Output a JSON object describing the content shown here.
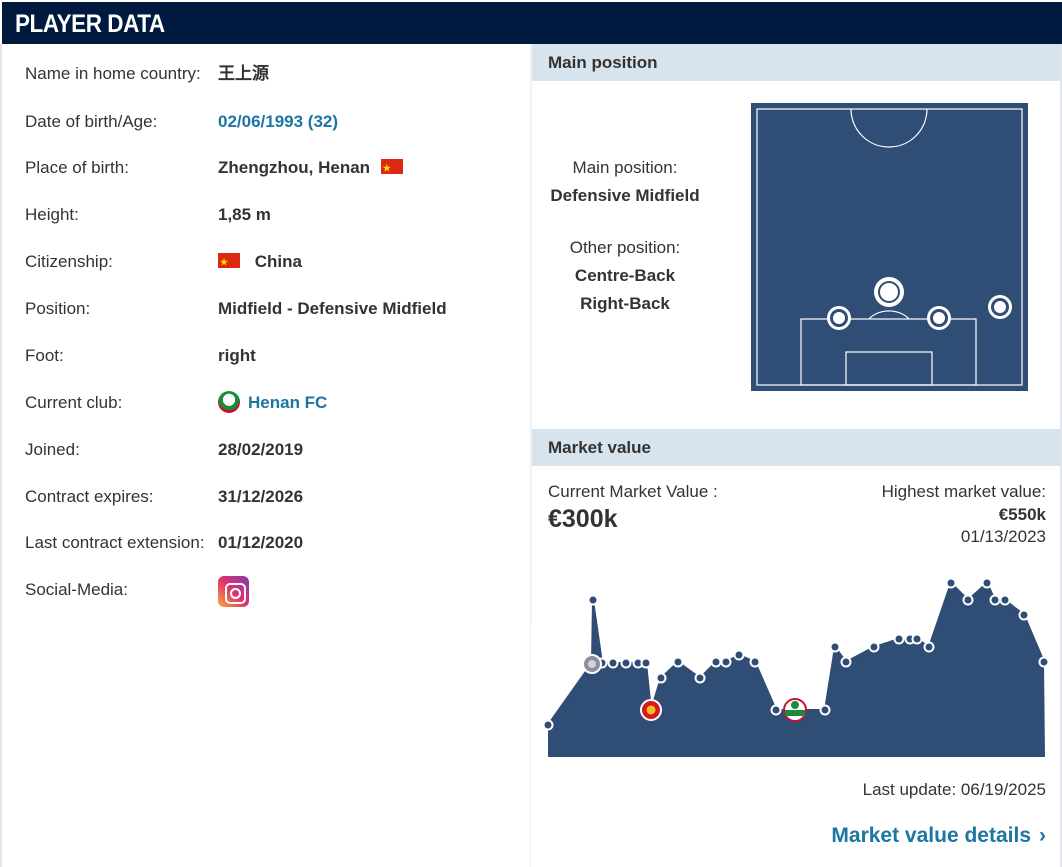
{
  "header": {
    "title": "PLAYER DATA"
  },
  "player": {
    "rows": [
      {
        "label": "Name in home country:",
        "value": "王上源"
      },
      {
        "label": "Date of birth/Age:",
        "value": "02/06/1993 (32)"
      },
      {
        "label": "Place of birth:",
        "value": "Zhengzhou, Henan"
      },
      {
        "label": "Height:",
        "value": "1,85 m"
      },
      {
        "label": "Citizenship:",
        "value": "China"
      },
      {
        "label": "Position:",
        "value": "Midfield - Defensive Midfield"
      },
      {
        "label": "Foot:",
        "value": "right"
      },
      {
        "label": "Current club:",
        "value": "Henan FC"
      },
      {
        "label": "Joined:",
        "value": "28/02/2019"
      },
      {
        "label": "Contract expires:",
        "value": "31/12/2026"
      },
      {
        "label": "Last contract extension:",
        "value": "01/12/2020"
      },
      {
        "label": "Social-Media:",
        "value": ""
      }
    ],
    "flag_icon": "china-flag-icon",
    "club_icon": "henan-fc-logo-icon",
    "social_icon": "instagram-icon"
  },
  "position": {
    "heading": "Main position",
    "main_label": "Main position:",
    "main_value": "Defensive Midfield",
    "other_label": "Other position:",
    "other_values": [
      "Centre-Back",
      "Right-Back"
    ]
  },
  "market": {
    "heading": "Market value",
    "current_label": "Current Market Value :",
    "current_value": "€300k",
    "highest_label": "Highest market value:",
    "highest_value": "€550k",
    "highest_date": "01/13/2023",
    "last_update": "Last update: 06/19/2025",
    "details_link": "Market value details"
  },
  "colors": {
    "header_bg": "#00193f",
    "section_bg": "#d7e3ed",
    "link": "#1d75a3",
    "pitch": "#2f4d75",
    "chart_area": "#2f4d75"
  }
}
